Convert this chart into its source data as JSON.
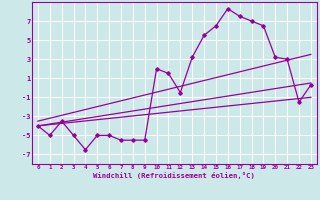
{
  "hours": [
    0,
    1,
    2,
    3,
    4,
    5,
    6,
    7,
    8,
    9,
    10,
    11,
    12,
    13,
    14,
    15,
    16,
    17,
    18,
    19,
    20,
    21,
    22,
    23
  ],
  "windchill": [
    -4,
    -5,
    -3.5,
    -5,
    -6.5,
    -5,
    -5,
    -5.5,
    -5.5,
    -5.5,
    2,
    1.5,
    -0.5,
    3.2,
    5.5,
    6.5,
    8.3,
    7.5,
    7.0,
    6.5,
    3.2,
    3.0,
    -1.5,
    0.3
  ],
  "trend_lines": [
    {
      "x0": 0,
      "y0": -4.0,
      "x1": 23,
      "y1": -1.0
    },
    {
      "x0": 0,
      "y0": -4.0,
      "x1": 23,
      "y1": 0.5
    },
    {
      "x0": 0,
      "y0": -3.5,
      "x1": 23,
      "y1": 3.5
    }
  ],
  "bg_color": "#cce8e8",
  "grid_color": "#ffffff",
  "line_color": "#990099",
  "xlabel": "Windchill (Refroidissement éolien,°C)",
  "ylim": [
    -8,
    9
  ],
  "xlim": [
    -0.5,
    23.5
  ],
  "yticks": [
    -7,
    -5,
    -3,
    -1,
    1,
    3,
    5,
    7
  ],
  "xticks": [
    0,
    1,
    2,
    3,
    4,
    5,
    6,
    7,
    8,
    9,
    10,
    11,
    12,
    13,
    14,
    15,
    16,
    17,
    18,
    19,
    20,
    21,
    22,
    23
  ],
  "marker": "D",
  "markersize": 1.8,
  "linewidth": 0.9
}
